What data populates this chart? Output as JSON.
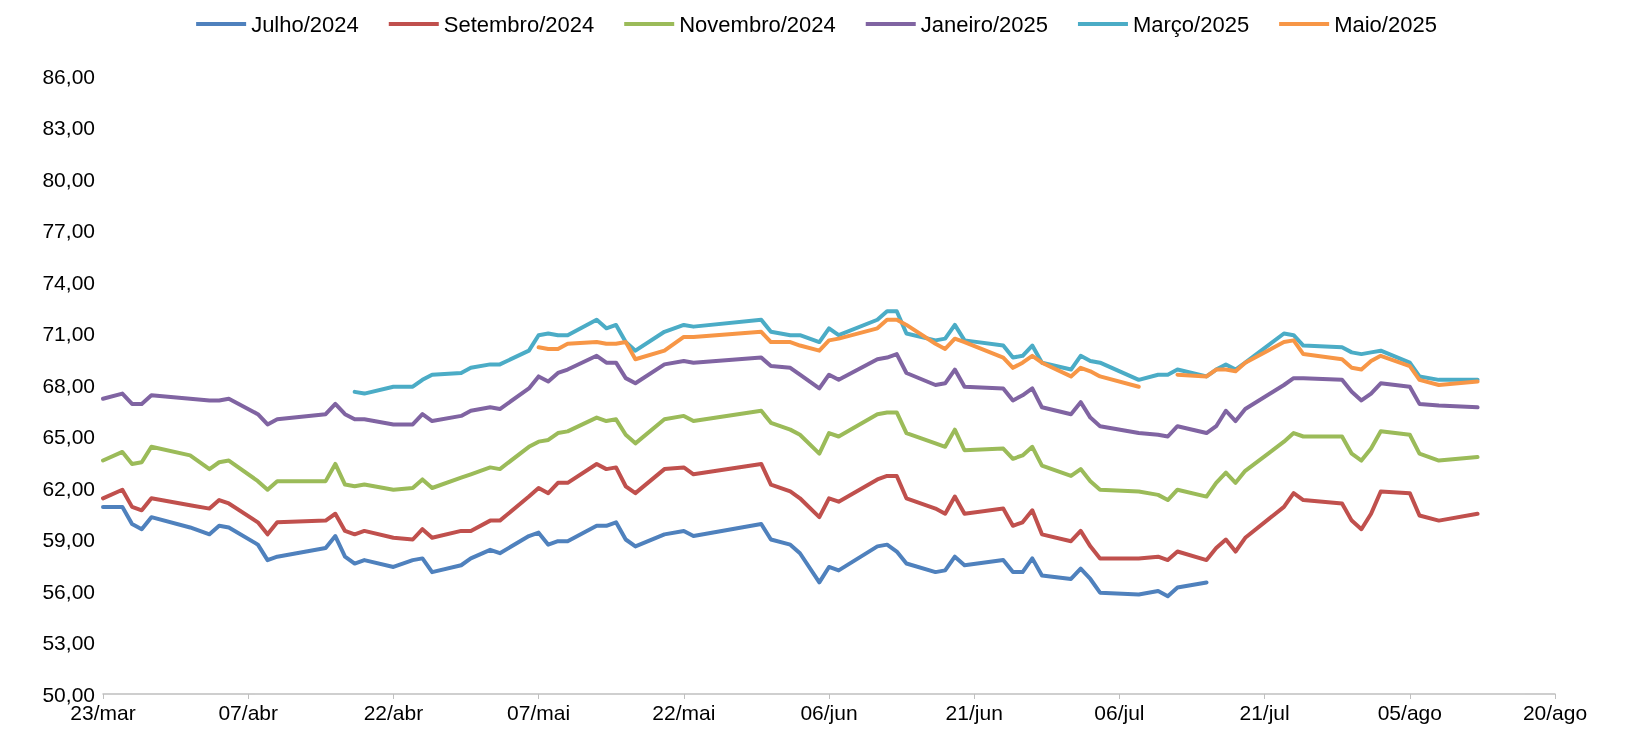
{
  "chart_data": {
    "type": "line",
    "legend": "top",
    "marker": "none",
    "line_style": "solid",
    "grid": false,
    "x": [
      "--03-23",
      "--03-25",
      "--03-26",
      "--03-27",
      "--03-28",
      "--04-01",
      "--04-03",
      "--04-04",
      "--04-05",
      "--04-08",
      "--04-09",
      "--04-10",
      "--04-15",
      "--04-16",
      "--04-17",
      "--04-18",
      "--04-19",
      "--04-22",
      "--04-24",
      "--04-25",
      "--04-26",
      "--04-29",
      "--04-30",
      "--05-02",
      "--05-03",
      "--05-06",
      "--05-07",
      "--05-08",
      "--05-09",
      "--05-10",
      "--05-13",
      "--05-14",
      "--05-15",
      "--05-16",
      "--05-17",
      "--05-20",
      "--05-22",
      "--05-23",
      "--05-30",
      "--05-31",
      "--06-02",
      "--06-03",
      "--06-05",
      "--06-06",
      "--06-07",
      "--06-11",
      "--06-12",
      "--06-13",
      "--06-14",
      "--06-17",
      "--06-18",
      "--06-19",
      "--06-20",
      "--06-24",
      "--06-25",
      "--06-26",
      "--06-27",
      "--06-28",
      "--07-01",
      "--07-02",
      "--07-03",
      "--07-04",
      "--07-08",
      "--07-10",
      "--07-11",
      "--07-12",
      "--07-15",
      "--07-16",
      "--07-17",
      "--07-18",
      "--07-19",
      "--07-23",
      "--07-24",
      "--07-25",
      "--07-29",
      "--07-30",
      "--07-31",
      "--08-01",
      "--08-02",
      "--08-05",
      "--08-06",
      "--08-08",
      "--08-12"
    ],
    "xlim": [
      "--03-23",
      "--08-20"
    ],
    "xticks": [
      {
        "value": "--03-23",
        "label": "23/mar"
      },
      {
        "value": "--04-07",
        "label": "07/abr"
      },
      {
        "value": "--04-22",
        "label": "22/abr"
      },
      {
        "value": "--05-07",
        "label": "07/mai"
      },
      {
        "value": "--05-22",
        "label": "22/mai"
      },
      {
        "value": "--06-06",
        "label": "06/jun"
      },
      {
        "value": "--06-21",
        "label": "21/jun"
      },
      {
        "value": "--07-06",
        "label": "06/jul"
      },
      {
        "value": "--07-21",
        "label": "21/jul"
      },
      {
        "value": "--08-05",
        "label": "05/ago"
      },
      {
        "value": "--08-20",
        "label": "20/ago"
      }
    ],
    "ylim": [
      50,
      86
    ],
    "yticks": [
      {
        "value": 50,
        "label": "50,00"
      },
      {
        "value": 53,
        "label": "53,00"
      },
      {
        "value": 56,
        "label": "56,00"
      },
      {
        "value": 59,
        "label": "59,00"
      },
      {
        "value": 62,
        "label": "62,00"
      },
      {
        "value": 65,
        "label": "65,00"
      },
      {
        "value": 68,
        "label": "68,00"
      },
      {
        "value": 71,
        "label": "71,00"
      },
      {
        "value": 74,
        "label": "74,00"
      },
      {
        "value": 77,
        "label": "77,00"
      },
      {
        "value": 80,
        "label": "80,00"
      },
      {
        "value": 83,
        "label": "83,00"
      },
      {
        "value": 86,
        "label": "86,00"
      }
    ],
    "series": [
      {
        "name": "Julho/2024",
        "color": "#4f81bd",
        "values": [
          60.9,
          60.9,
          59.9,
          59.6,
          60.3,
          59.7,
          59.3,
          59.8,
          59.7,
          58.7,
          57.8,
          58.0,
          58.5,
          59.2,
          58.0,
          57.6,
          57.8,
          57.4,
          57.8,
          57.9,
          57.1,
          57.5,
          57.9,
          58.4,
          58.2,
          59.2,
          59.4,
          58.7,
          58.9,
          58.9,
          59.8,
          59.8,
          60.0,
          59.0,
          58.6,
          59.3,
          59.5,
          59.2,
          59.9,
          59.0,
          58.7,
          58.2,
          56.5,
          57.4,
          57.2,
          58.6,
          58.7,
          58.3,
          57.6,
          57.1,
          57.2,
          58.0,
          57.5,
          57.8,
          57.1,
          57.1,
          57.9,
          56.9,
          56.7,
          57.3,
          56.7,
          55.9,
          55.8,
          56.0,
          55.7,
          56.2,
          56.5,
          null,
          null,
          null,
          null,
          null,
          null,
          null,
          null,
          null,
          null,
          null,
          null,
          null,
          null,
          null,
          null
        ]
      },
      {
        "name": "Setembro/2024",
        "color": "#c0504d",
        "values": [
          61.4,
          61.9,
          60.9,
          60.7,
          61.4,
          61.0,
          60.8,
          61.3,
          61.1,
          60.0,
          59.3,
          60.0,
          60.1,
          60.5,
          59.5,
          59.3,
          59.5,
          59.1,
          59.0,
          59.6,
          59.1,
          59.5,
          59.5,
          60.1,
          60.1,
          61.5,
          62.0,
          61.7,
          62.3,
          62.3,
          63.4,
          63.1,
          63.2,
          62.1,
          61.7,
          63.1,
          63.2,
          62.8,
          63.4,
          62.2,
          61.8,
          61.4,
          60.3,
          61.4,
          61.2,
          62.5,
          62.7,
          62.7,
          61.4,
          60.8,
          60.5,
          61.5,
          60.5,
          60.8,
          59.8,
          60.0,
          60.7,
          59.3,
          58.9,
          59.5,
          58.6,
          57.9,
          57.9,
          58.0,
          57.8,
          58.3,
          57.8,
          58.5,
          59.0,
          58.3,
          59.1,
          60.9,
          61.7,
          61.3,
          61.1,
          60.1,
          59.6,
          60.5,
          61.8,
          61.7,
          60.4,
          60.1,
          60.5
        ]
      },
      {
        "name": "Novembro/2024",
        "color": "#9bbb59",
        "values": [
          63.6,
          64.1,
          63.4,
          63.5,
          64.4,
          63.9,
          63.1,
          63.5,
          63.6,
          62.4,
          61.9,
          62.4,
          62.4,
          63.4,
          62.2,
          62.1,
          62.2,
          61.9,
          62.0,
          62.5,
          62.0,
          62.6,
          62.8,
          63.2,
          63.1,
          64.4,
          64.7,
          64.8,
          65.2,
          65.3,
          66.1,
          65.9,
          66.0,
          65.1,
          64.6,
          66.0,
          66.2,
          65.9,
          66.5,
          65.8,
          65.4,
          65.1,
          64.0,
          65.2,
          65.0,
          66.3,
          66.4,
          66.4,
          65.2,
          64.6,
          64.4,
          65.4,
          64.2,
          64.3,
          63.7,
          63.9,
          64.4,
          63.3,
          62.7,
          63.1,
          62.4,
          61.9,
          61.8,
          61.6,
          61.3,
          61.9,
          61.5,
          62.3,
          62.9,
          62.3,
          63.0,
          64.7,
          65.2,
          65.0,
          65.0,
          64.0,
          63.6,
          64.3,
          65.3,
          65.1,
          64.0,
          63.6,
          63.8
        ]
      },
      {
        "name": "Janeiro/2025",
        "color": "#8064a2",
        "values": [
          67.2,
          67.5,
          66.9,
          66.9,
          67.4,
          67.2,
          67.1,
          67.1,
          67.2,
          66.3,
          65.7,
          66.0,
          66.3,
          66.9,
          66.3,
          66.0,
          66.0,
          65.7,
          65.7,
          66.3,
          65.9,
          66.2,
          66.5,
          66.7,
          66.6,
          67.8,
          68.5,
          68.2,
          68.7,
          68.9,
          69.7,
          69.3,
          69.3,
          68.4,
          68.1,
          69.2,
          69.4,
          69.3,
          69.6,
          69.1,
          69.0,
          68.6,
          67.8,
          68.6,
          68.3,
          69.5,
          69.6,
          69.8,
          68.7,
          68.0,
          68.1,
          68.9,
          67.9,
          67.8,
          67.1,
          67.4,
          67.8,
          66.7,
          66.3,
          67.0,
          66.1,
          65.6,
          65.2,
          65.1,
          65.0,
          65.6,
          65.2,
          65.6,
          66.5,
          65.9,
          66.6,
          68.0,
          68.4,
          68.4,
          68.3,
          67.6,
          67.1,
          67.5,
          68.1,
          67.9,
          66.9,
          66.8,
          66.7
        ]
      },
      {
        "name": "Março/2025",
        "color": "#4bacc6",
        "values": [
          null,
          null,
          null,
          null,
          null,
          null,
          null,
          null,
          null,
          null,
          null,
          null,
          null,
          null,
          null,
          67.6,
          67.5,
          67.9,
          67.9,
          68.3,
          68.6,
          68.7,
          69.0,
          69.2,
          69.2,
          70.0,
          70.9,
          71.0,
          70.9,
          70.9,
          71.8,
          71.3,
          71.5,
          70.5,
          70.0,
          71.1,
          71.5,
          71.4,
          71.8,
          71.1,
          70.9,
          70.9,
          70.5,
          71.3,
          70.9,
          71.8,
          72.3,
          72.3,
          71.0,
          70.6,
          70.7,
          71.5,
          70.6,
          70.3,
          69.6,
          69.7,
          70.3,
          69.3,
          68.9,
          69.7,
          69.4,
          69.3,
          68.3,
          68.6,
          68.6,
          68.9,
          68.5,
          68.9,
          69.2,
          68.9,
          69.3,
          71.0,
          70.9,
          70.3,
          70.2,
          69.9,
          69.8,
          69.9,
          70.0,
          69.3,
          68.5,
          68.3,
          68.3
        ]
      },
      {
        "name": "Maio/2025",
        "color": "#f79646",
        "values": [
          null,
          null,
          null,
          null,
          null,
          null,
          null,
          null,
          null,
          null,
          null,
          null,
          null,
          null,
          null,
          null,
          null,
          null,
          null,
          null,
          null,
          null,
          null,
          null,
          null,
          null,
          70.2,
          70.1,
          70.1,
          70.4,
          70.5,
          70.4,
          70.4,
          70.5,
          69.5,
          70.0,
          70.8,
          70.8,
          71.1,
          70.5,
          70.5,
          70.3,
          70.0,
          70.6,
          70.7,
          71.3,
          71.8,
          71.8,
          71.5,
          70.4,
          70.1,
          70.7,
          70.5,
          69.6,
          69.0,
          69.3,
          69.7,
          69.3,
          68.5,
          69.0,
          68.8,
          68.5,
          67.9,
          null,
          null,
          68.6,
          68.5,
          68.9,
          68.9,
          68.8,
          69.3,
          70.5,
          70.6,
          69.8,
          69.5,
          69.0,
          68.9,
          69.4,
          69.7,
          69.1,
          68.3,
          68.0,
          68.2
        ]
      }
    ]
  }
}
